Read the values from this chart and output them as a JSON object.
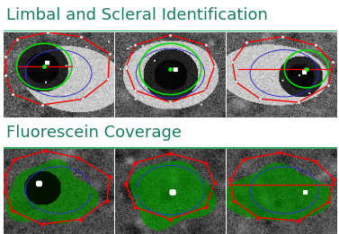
{
  "title1": "Limbal and Scleral Identification",
  "title2": "Fluorescein Coverage",
  "title_color": "#1a7a5e",
  "title_fontsize": 13,
  "background_color": "#ffffff",
  "separator_color": "#3aaa6e",
  "separator_linewidth": 1.5,
  "fig_width": 3.77,
  "fig_height": 2.61,
  "dpi": 100
}
